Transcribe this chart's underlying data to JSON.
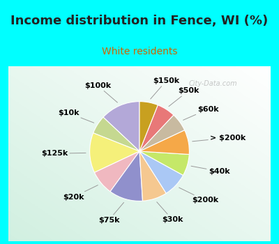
{
  "title": "Income distribution in Fence, WI (%)",
  "subtitle": "White residents",
  "background_cyan": "#00FFFF",
  "labels": [
    "$100k",
    "$10k",
    "$125k",
    "$20k",
    "$75k",
    "$30k",
    "$200k",
    "$40k",
    "> $200k",
    "$60k",
    "$50k",
    "$150k"
  ],
  "values": [
    13,
    6,
    13,
    8,
    11,
    8,
    8,
    7,
    8,
    6,
    6,
    6
  ],
  "colors": [
    "#b3a8d8",
    "#c5d890",
    "#f5f07a",
    "#f0b8c0",
    "#9090cc",
    "#f5c890",
    "#aac8f5",
    "#c5e868",
    "#f5a848",
    "#c8baa0",
    "#e87878",
    "#c8a020"
  ],
  "title_fontsize": 13,
  "subtitle_fontsize": 10,
  "title_color": "#222222",
  "subtitle_color": "#cc6600",
  "watermark": "City-Data.com",
  "startangle": 90,
  "label_fontsize": 8
}
